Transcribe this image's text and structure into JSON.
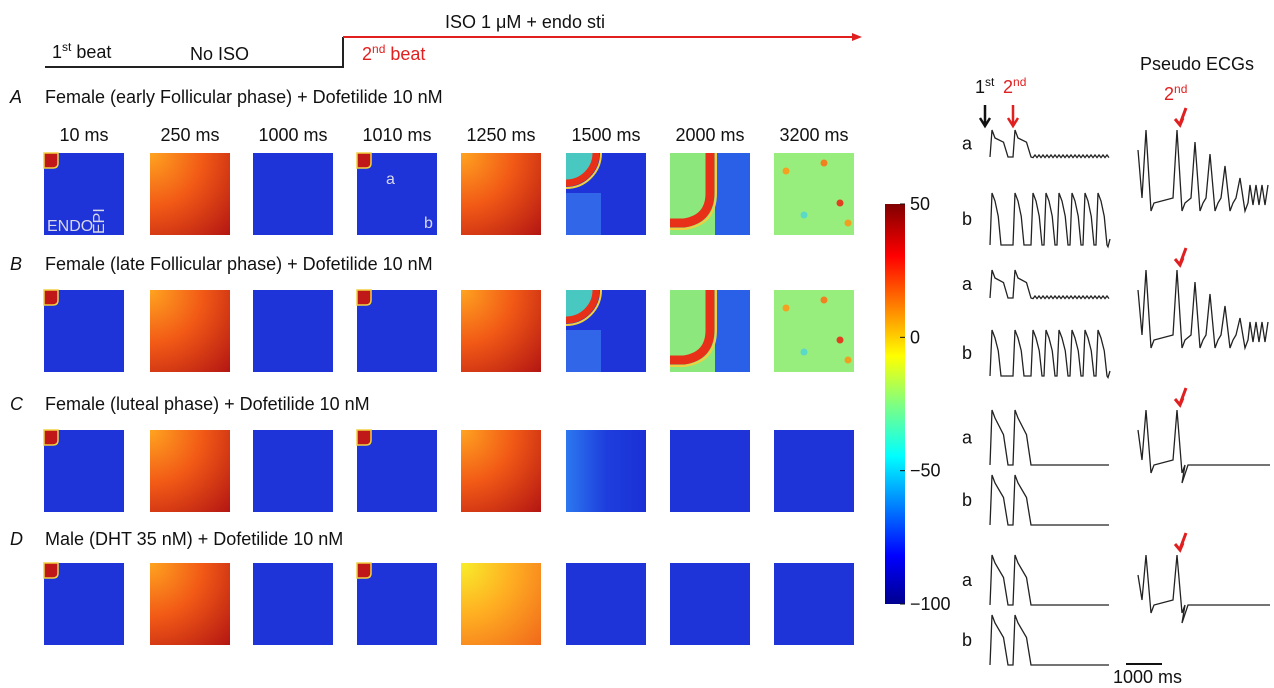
{
  "timeline": {
    "first_beat_num": "1",
    "first_beat_sup": "st",
    "first_beat_word": "beat",
    "no_iso": "No ISO",
    "iso": "ISO 1 μM + endo sti",
    "second_beat_num": "2",
    "second_beat_sup": "nd",
    "second_beat_word": "beat"
  },
  "times": [
    "10 ms",
    "250 ms",
    "1000 ms",
    "1010 ms",
    "1250 ms",
    "1500 ms",
    "2000 ms",
    "3200 ms"
  ],
  "panels": [
    {
      "letter": "A",
      "title": "Female (early Follicular phase) + Dofetilide 10 nM"
    },
    {
      "letter": "B",
      "title": "Female (late Follicular phase) + Dofetilide 10 nM"
    },
    {
      "letter": "C",
      "title": "Female (luteal phase) + Dofetilide 10 nM"
    },
    {
      "letter": "D",
      "title": "Male (DHT 35 nM) + Dofetilide 10 nM"
    }
  ],
  "annotations": {
    "a": "a",
    "b": "b",
    "endo": "ENDO",
    "epi": "EPI"
  },
  "colorbar": {
    "lim": [
      -100,
      50
    ],
    "ticks": [
      50,
      0,
      {
        "value": -50,
        "label": "−50"
      },
      {
        "value": -100,
        "label": "−100"
      }
    ]
  },
  "traces": {
    "title": "Pseudo ECGs",
    "first_num": "1",
    "first_sup": "st",
    "second_num": "2",
    "second_sup": "nd",
    "row_labels": [
      "a",
      "b"
    ],
    "scale": "1000 ms"
  }
}
